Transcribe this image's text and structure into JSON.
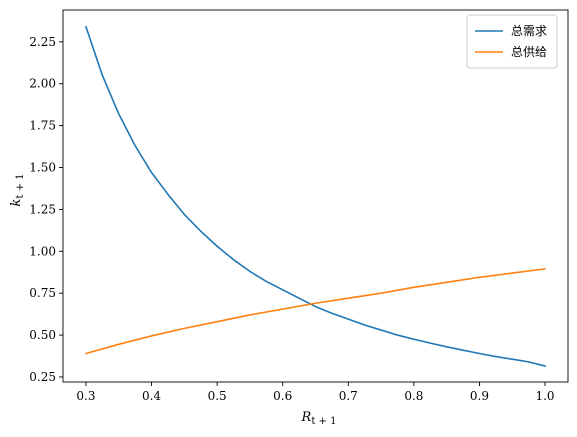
{
  "chart_data": {
    "type": "line",
    "title": "",
    "xlabel": {
      "main": "R",
      "sub": "t + 1"
    },
    "ylabel": {
      "main": "k",
      "sub": "t + 1"
    },
    "xlim": [
      0.265,
      1.035
    ],
    "ylim": [
      0.22,
      2.44
    ],
    "x_ticks": [
      0.3,
      0.4,
      0.5,
      0.6,
      0.7,
      0.8,
      0.9,
      1.0
    ],
    "x_tick_labels": [
      "0.3",
      "0.4",
      "0.5",
      "0.6",
      "0.7",
      "0.8",
      "0.9",
      "1.0"
    ],
    "y_ticks": [
      0.25,
      0.5,
      0.75,
      1.0,
      1.25,
      1.5,
      1.75,
      2.0,
      2.25
    ],
    "y_tick_labels": [
      "0.25",
      "0.50",
      "0.75",
      "1.00",
      "1.25",
      "1.50",
      "1.75",
      "2.00",
      "2.25"
    ],
    "grid": false,
    "legend_position": "top-right",
    "series": [
      {
        "name": "总需求",
        "color": "#1f77b4",
        "x": [
          0.3,
          0.325,
          0.35,
          0.375,
          0.4,
          0.425,
          0.45,
          0.475,
          0.5,
          0.525,
          0.55,
          0.575,
          0.6,
          0.625,
          0.65,
          0.675,
          0.7,
          0.725,
          0.75,
          0.775,
          0.8,
          0.825,
          0.85,
          0.875,
          0.9,
          0.925,
          0.95,
          0.975,
          1.0
        ],
        "y": [
          2.34,
          2.05,
          1.82,
          1.63,
          1.47,
          1.34,
          1.22,
          1.12,
          1.03,
          0.95,
          0.88,
          0.82,
          0.77,
          0.72,
          0.67,
          0.63,
          0.595,
          0.56,
          0.53,
          0.5,
          0.475,
          0.452,
          0.43,
          0.41,
          0.39,
          0.372,
          0.356,
          0.34,
          0.315
        ]
      },
      {
        "name": "总供给",
        "color": "#ff7f0e",
        "x": [
          0.3,
          0.35,
          0.4,
          0.45,
          0.5,
          0.55,
          0.6,
          0.65,
          0.7,
          0.75,
          0.8,
          0.85,
          0.9,
          0.95,
          1.0
        ],
        "y": [
          0.39,
          0.445,
          0.495,
          0.54,
          0.58,
          0.62,
          0.655,
          0.69,
          0.72,
          0.75,
          0.785,
          0.815,
          0.845,
          0.87,
          0.895
        ]
      }
    ]
  }
}
